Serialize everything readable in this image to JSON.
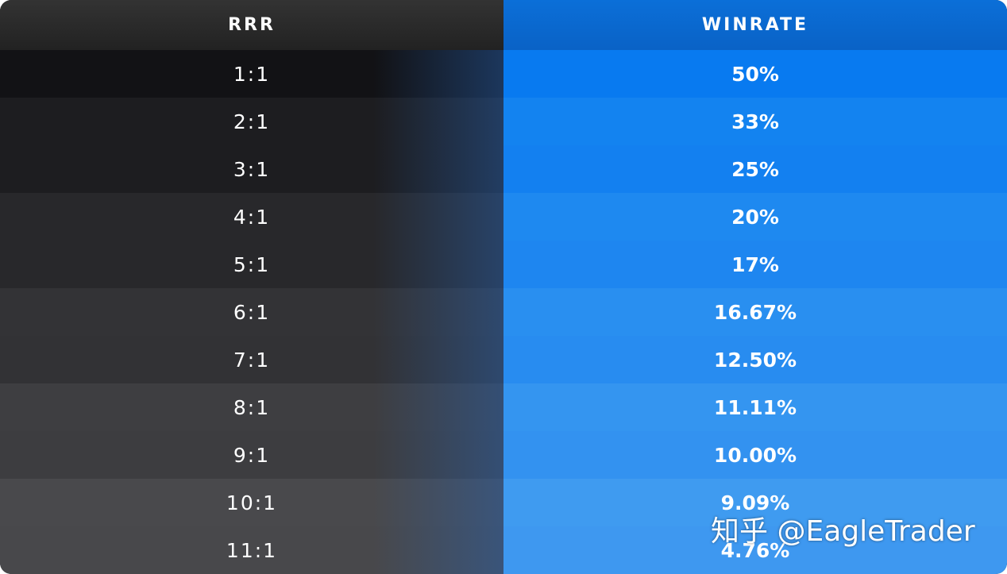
{
  "table": {
    "header": [
      "RRR",
      "WINRATE"
    ],
    "rows": [
      [
        "1:1",
        "50%"
      ],
      [
        "2:1",
        "33%"
      ],
      [
        "3:1",
        "25%"
      ],
      [
        "4:1",
        "20%"
      ],
      [
        "5:1",
        "17%"
      ],
      [
        "6:1",
        "16.67%"
      ],
      [
        "7:1",
        "12.50%"
      ],
      [
        "8:1",
        "11.11%"
      ],
      [
        "9:1",
        "10.00%"
      ],
      [
        "10:1",
        "9.09%"
      ],
      [
        "11:1",
        "4.76%"
      ]
    ]
  },
  "watermark": "知乎 @EagleTrader"
}
